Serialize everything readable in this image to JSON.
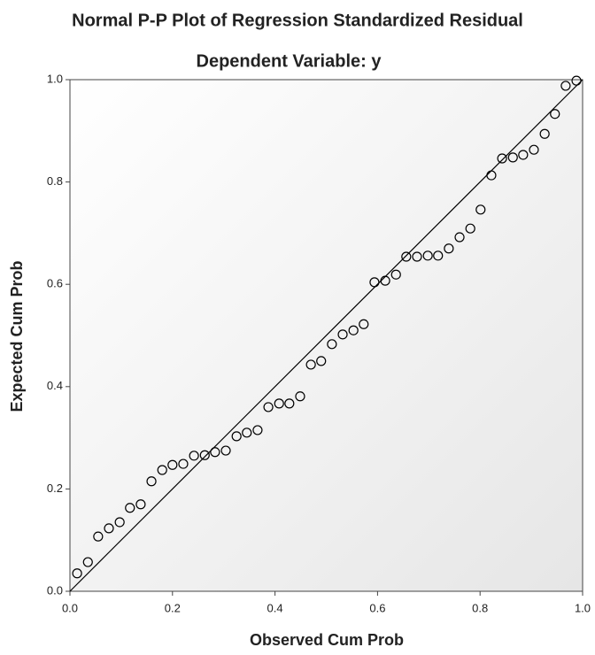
{
  "chart_data": {
    "type": "scatter",
    "title": "Normal P-P Plot of Regression Standardized Residual",
    "subtitle": "Dependent Variable: y",
    "x_label": "Observed Cum Prob",
    "y_label": "Expected Cum Prob",
    "x": [
      0.014,
      0.035,
      0.055,
      0.076,
      0.097,
      0.117,
      0.138,
      0.159,
      0.18,
      0.2,
      0.221,
      0.242,
      0.263,
      0.283,
      0.304,
      0.325,
      0.345,
      0.366,
      0.387,
      0.408,
      0.428,
      0.449,
      0.47,
      0.49,
      0.511,
      0.532,
      0.553,
      0.573,
      0.594,
      0.615,
      0.636,
      0.656,
      0.677,
      0.698,
      0.718,
      0.739,
      0.76,
      0.781,
      0.801,
      0.822,
      0.843,
      0.864,
      0.884,
      0.905,
      0.926,
      0.946,
      0.967,
      0.988
    ],
    "values": [
      0.035,
      0.057,
      0.107,
      0.123,
      0.135,
      0.163,
      0.17,
      0.215,
      0.237,
      0.247,
      0.249,
      0.265,
      0.266,
      0.272,
      0.275,
      0.303,
      0.31,
      0.315,
      0.36,
      0.367,
      0.367,
      0.381,
      0.443,
      0.45,
      0.483,
      0.502,
      0.51,
      0.522,
      0.604,
      0.607,
      0.619,
      0.654,
      0.654,
      0.656,
      0.656,
      0.67,
      0.692,
      0.709,
      0.746,
      0.813,
      0.846,
      0.848,
      0.853,
      0.863,
      0.894,
      0.933,
      0.988,
      0.998
    ],
    "xlim": [
      0,
      1
    ],
    "ylim": [
      0,
      1
    ],
    "xticks": [
      {
        "value": 0,
        "label": "0.0"
      },
      0.2,
      0.4,
      0.6,
      0.8,
      {
        "value": 1,
        "label": "1.0"
      }
    ],
    "yticks": [
      {
        "value": 0,
        "label": "0.0"
      },
      0.2,
      0.4,
      0.6,
      0.8,
      {
        "value": 1,
        "label": "1.0"
      }
    ],
    "color": "#000000"
  }
}
